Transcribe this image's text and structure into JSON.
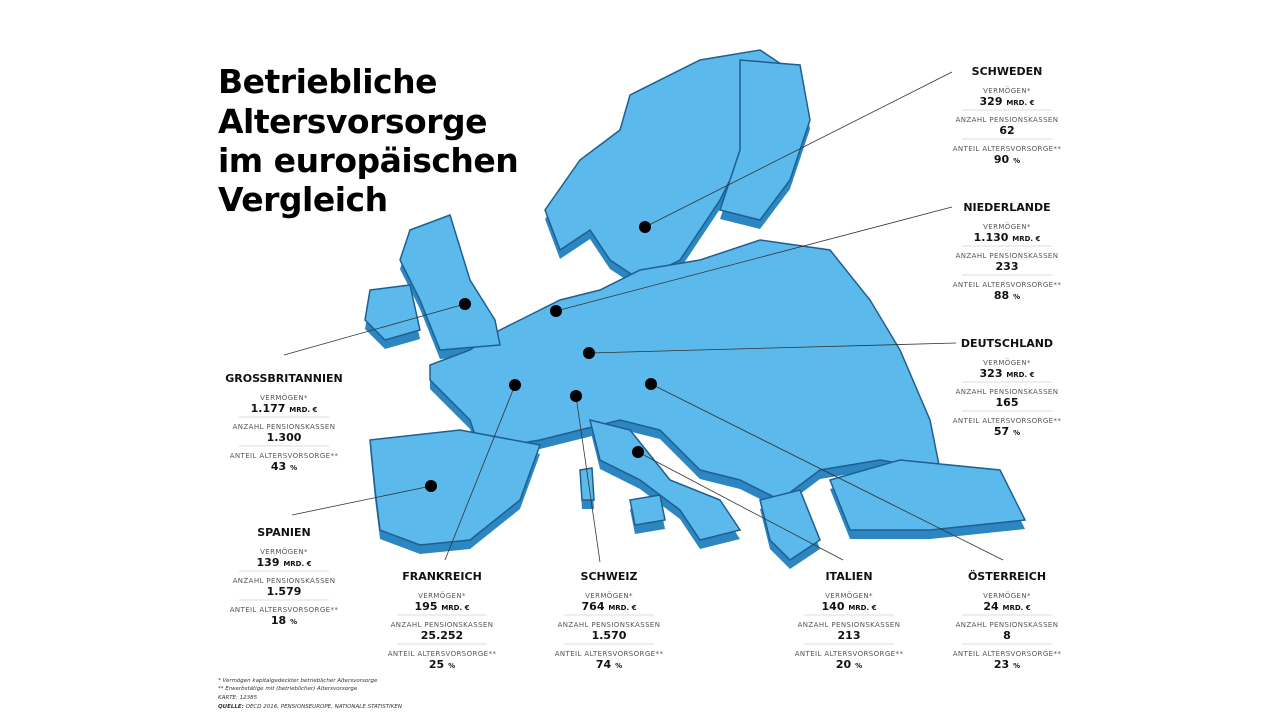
{
  "title": {
    "lines": [
      "Betriebliche",
      "Altersvorsorge",
      "im europäischen",
      "Vergleich"
    ]
  },
  "labels": {
    "assets": "VERMÖGEN*",
    "funds": "ANZAHL PENSIONSKASSEN",
    "share": "ANTEIL ALTERSVORSORGE**",
    "assets_unit": "MRD. €",
    "share_unit": "%"
  },
  "countries": [
    {
      "name": "SCHWEDEN",
      "assets": "329",
      "funds": "62",
      "share": "90"
    },
    {
      "name": "NIEDERLANDE",
      "assets": "1.130",
      "funds": "233",
      "share": "88"
    },
    {
      "name": "DEUTSCHLAND",
      "assets": "323",
      "funds": "165",
      "share": "57"
    },
    {
      "name": "GROSSBRITANNIEN",
      "assets": "1.177",
      "funds": "1.300",
      "share": "43"
    },
    {
      "name": "SPANIEN",
      "assets": "139",
      "funds": "1.579",
      "share": "18"
    },
    {
      "name": "FRANKREICH",
      "assets": "195",
      "funds": "25.252",
      "share": "25"
    },
    {
      "name": "SCHWEIZ",
      "assets": "764",
      "funds": "1.570",
      "share": "74"
    },
    {
      "name": "ITALIEN",
      "assets": "140",
      "funds": "213",
      "share": "20"
    },
    {
      "name": "ÖSTERREICH",
      "assets": "24",
      "funds": "8",
      "share": "23"
    }
  ],
  "footnotes": [
    "* Vermögen kapitalgedeckter betrieblicher Altersvorsorge",
    "** Erwerbstätige mit (betrieblicher) Altersvorsorge",
    "KARTE: 12385"
  ],
  "source": {
    "label": "QUELLE:",
    "text": "OECD 2016, PENSIONSEUROPE, NATIONALE STATISTIKEN"
  }
}
